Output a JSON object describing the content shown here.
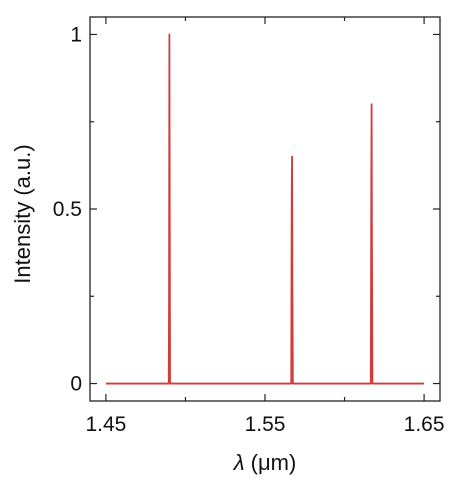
{
  "chart_data": {
    "type": "line",
    "xlabel_symbol": "λ",
    "xlabel_unit": " (μm)",
    "ylabel": "Intensity (a.u.)",
    "xlim": [
      1.44,
      1.66
    ],
    "ylim": [
      -0.05,
      1.05
    ],
    "xticks": [
      1.45,
      1.55,
      1.65
    ],
    "xtick_labels": [
      "1.45",
      "1.55",
      "1.65"
    ],
    "xticks_minor": [
      1.5,
      1.6
    ],
    "yticks": [
      0,
      0.5,
      1
    ],
    "ytick_labels": [
      "0",
      "0.5",
      "1"
    ],
    "yticks_minor": [
      0.25,
      0.75
    ],
    "grid": false,
    "color": "#d43a3a",
    "series": [
      {
        "x": [
          1.45,
          1.4895,
          1.4897,
          1.4899,
          1.4901,
          1.4903,
          1.5665,
          1.5668,
          1.567,
          1.5672,
          1.5675,
          1.6165,
          1.6168,
          1.617,
          1.6172,
          1.6175,
          1.65
        ],
        "y": [
          0,
          0,
          0.25,
          1.0,
          0.5,
          0,
          0,
          0.55,
          0.65,
          0.3,
          0,
          0,
          0.52,
          0.8,
          0.4,
          0,
          0
        ]
      }
    ]
  }
}
